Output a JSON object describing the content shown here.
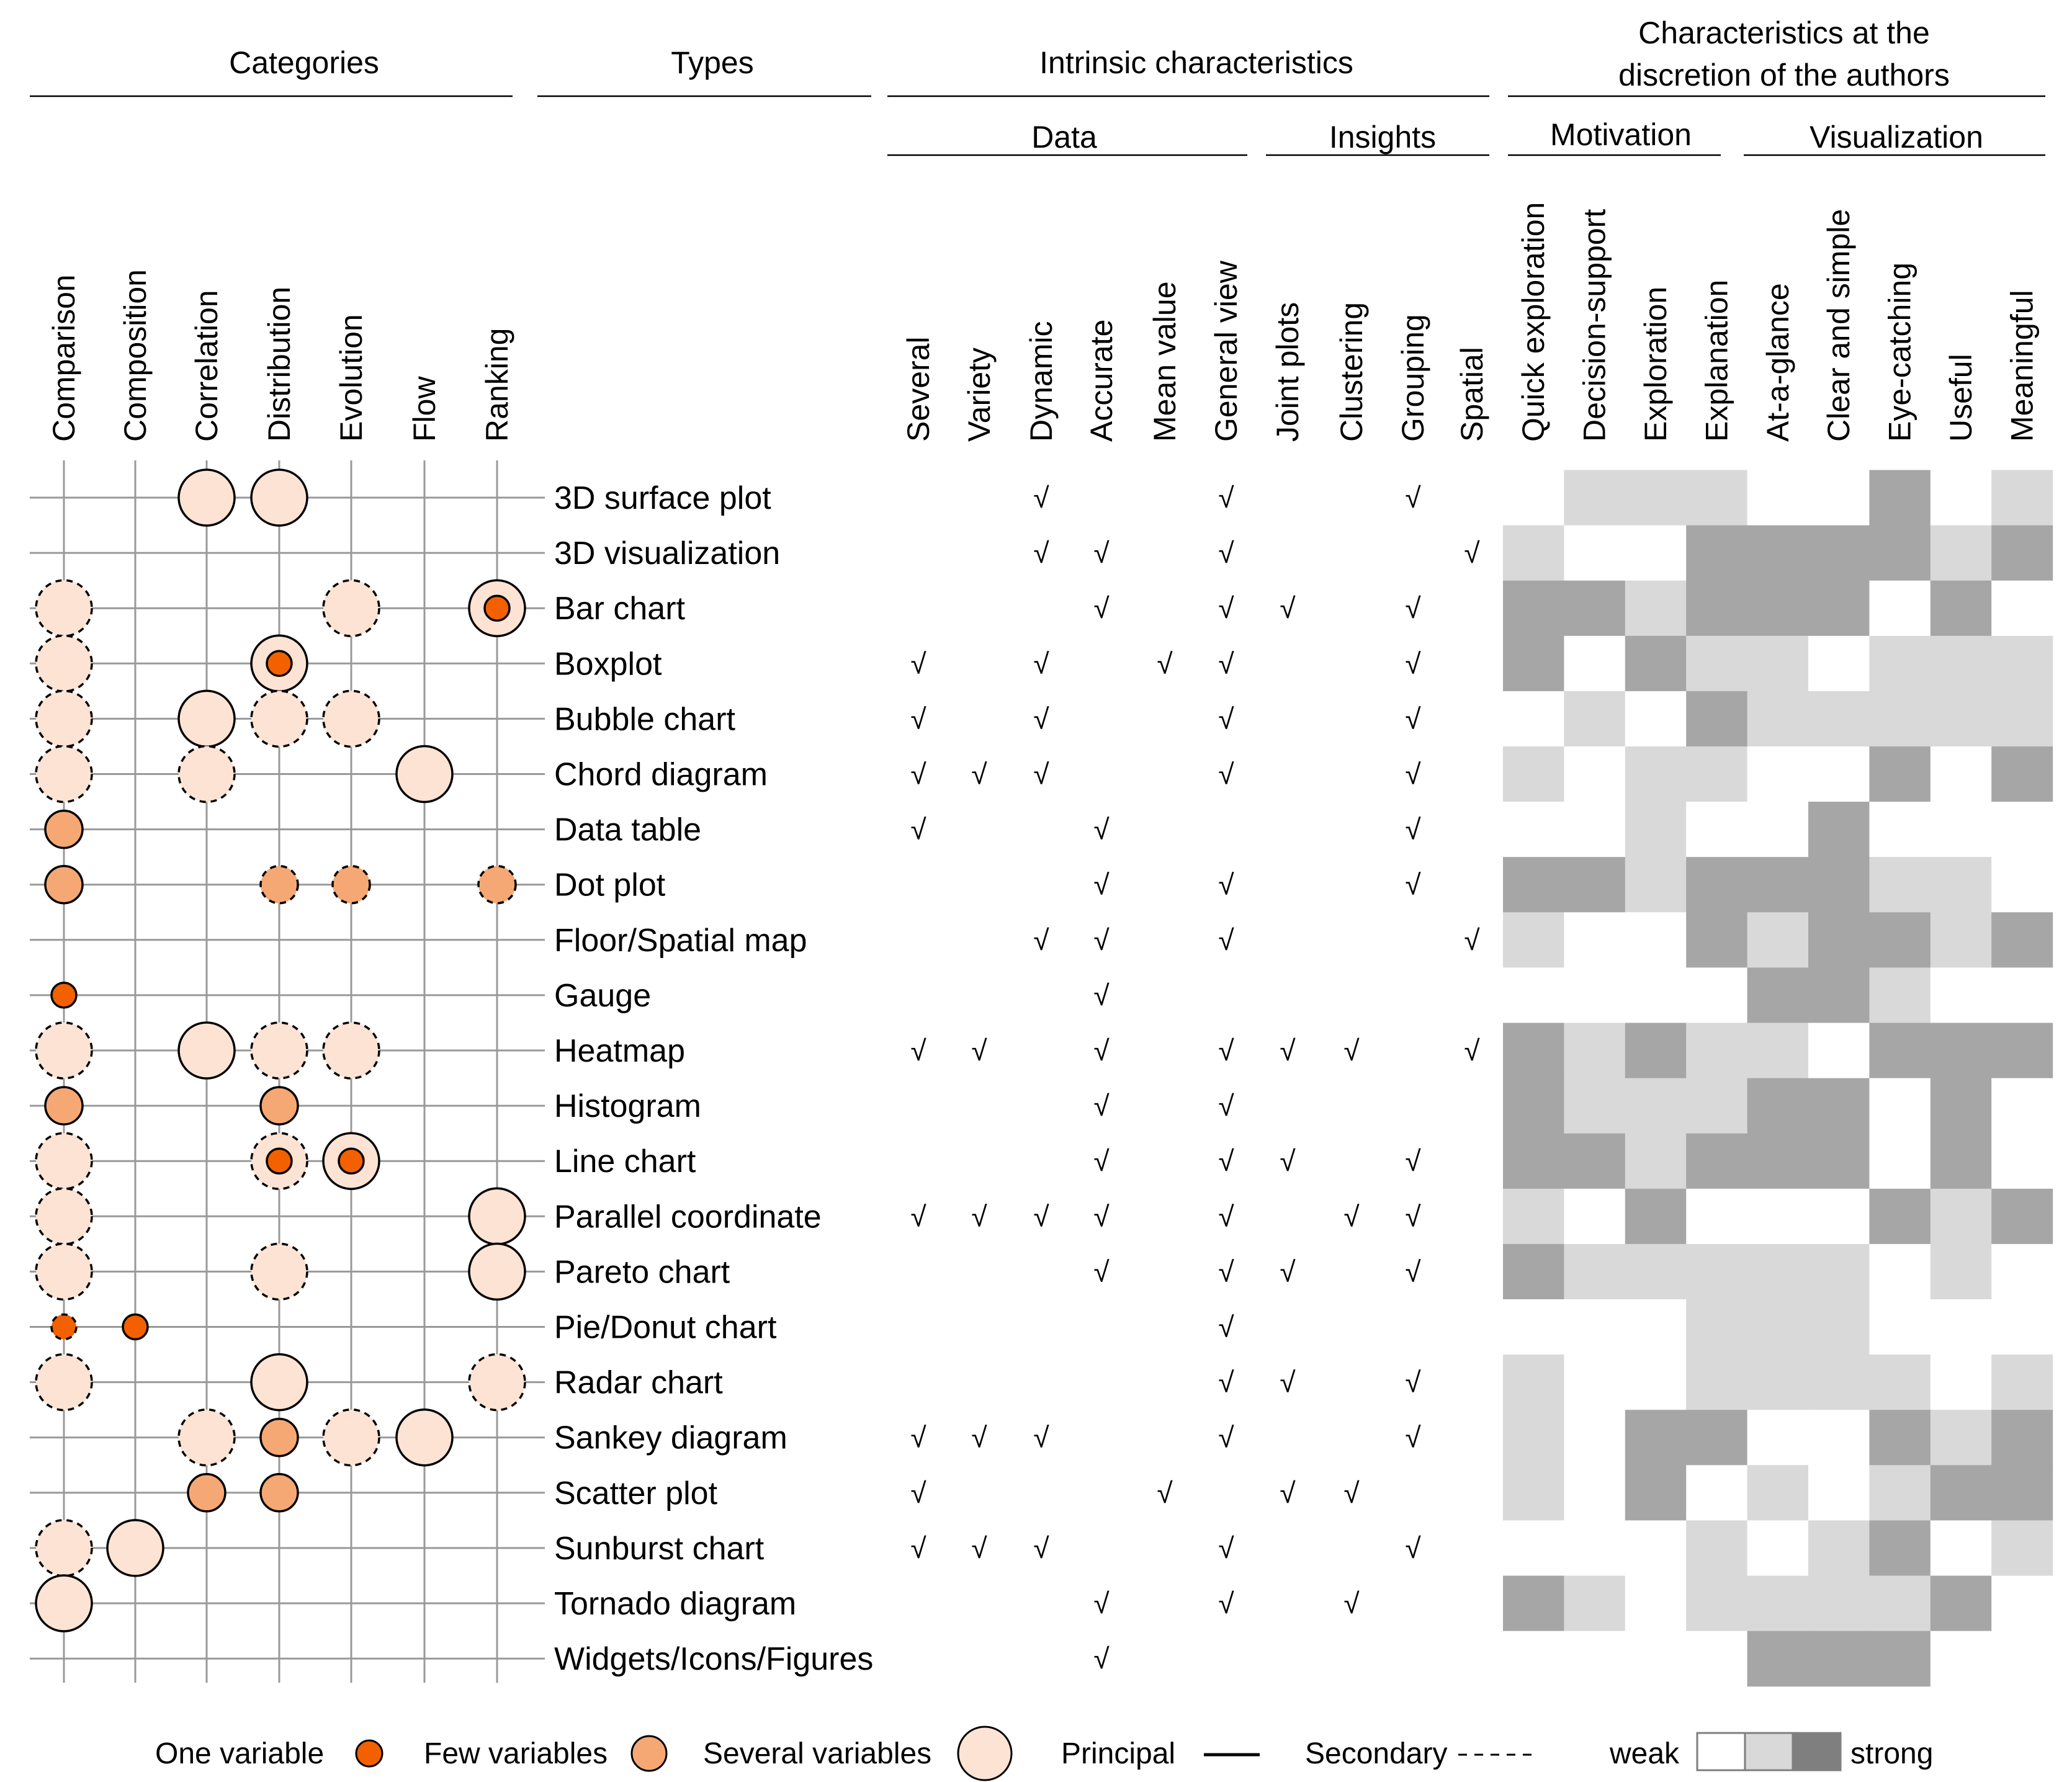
{
  "headers": {
    "categories": "Categories",
    "types": "Types",
    "intrinsic": "Intrinsic characteristics",
    "discretion_line1": "Characteristics at the",
    "discretion_line2": "discretion of the authors",
    "data": "Data",
    "insights": "Insights",
    "motivation": "Motivation",
    "visualization": "Visualization"
  },
  "category_columns": [
    "Comparison",
    "Composition",
    "Correlation",
    "Distribution",
    "Evolution",
    "Flow",
    "Ranking"
  ],
  "intrinsic_columns": [
    "Several",
    "Variety",
    "Dynamic",
    "Accurate",
    "Mean value",
    "General view",
    "Joint plots",
    "Clustering",
    "Grouping",
    "Spatial"
  ],
  "discretion_columns": [
    "Quick exploration",
    "Decision-support",
    "Exploration",
    "Explanation",
    "At-a-glance",
    "Clear and simple",
    "Eye-catching",
    "Useful",
    "Meaningful"
  ],
  "check_symbol": "√",
  "colors": {
    "one": "#f26000",
    "few": "#f5a873",
    "several": "#fde3d4",
    "weak": "#ffffff",
    "medium": "#d9d9d9",
    "strong": "#a6a6a6",
    "grid": "#999999"
  },
  "rows": [
    {
      "type": "3D surface plot",
      "circles": [
        null,
        null,
        "S3",
        "S3",
        null,
        null,
        null
      ],
      "checks": [
        0,
        0,
        1,
        0,
        0,
        1,
        0,
        0,
        1,
        0
      ],
      "strength": [
        0,
        1,
        1,
        1,
        0,
        0,
        2,
        0,
        1
      ]
    },
    {
      "type": "3D visualization",
      "circles": [
        null,
        null,
        null,
        null,
        null,
        null,
        null
      ],
      "checks": [
        0,
        0,
        1,
        1,
        0,
        1,
        0,
        0,
        0,
        1
      ],
      "strength": [
        1,
        0,
        0,
        2,
        2,
        2,
        2,
        1,
        2
      ]
    },
    {
      "type": "Bar chart",
      "circles": [
        "D3",
        null,
        null,
        null,
        "D3",
        null,
        "S3+S1"
      ],
      "checks": [
        0,
        0,
        0,
        1,
        0,
        1,
        1,
        0,
        1,
        0
      ],
      "strength": [
        2,
        2,
        1,
        2,
        2,
        2,
        0,
        2,
        0
      ]
    },
    {
      "type": "Boxplot",
      "circles": [
        "D3",
        null,
        null,
        "S3+S1",
        null,
        null,
        null
      ],
      "checks": [
        1,
        0,
        1,
        0,
        1,
        1,
        0,
        0,
        1,
        0
      ],
      "strength": [
        2,
        0,
        2,
        1,
        1,
        0,
        1,
        1,
        1
      ]
    },
    {
      "type": "Bubble chart",
      "circles": [
        "D3",
        null,
        "S3",
        "D3",
        "D3",
        null,
        null
      ],
      "checks": [
        1,
        0,
        1,
        0,
        0,
        1,
        0,
        0,
        1,
        0
      ],
      "strength": [
        0,
        1,
        0,
        2,
        1,
        1,
        1,
        1,
        1
      ]
    },
    {
      "type": "Chord diagram",
      "circles": [
        "D3",
        null,
        "D3",
        null,
        null,
        "S3",
        null
      ],
      "checks": [
        1,
        1,
        1,
        0,
        0,
        1,
        0,
        0,
        1,
        0
      ],
      "strength": [
        1,
        0,
        1,
        1,
        0,
        0,
        2,
        0,
        2
      ]
    },
    {
      "type": "Data table",
      "circles": [
        "S2",
        null,
        null,
        null,
        null,
        null,
        null
      ],
      "checks": [
        1,
        0,
        0,
        1,
        0,
        0,
        0,
        0,
        1,
        0
      ],
      "strength": [
        0,
        0,
        1,
        0,
        0,
        2,
        0,
        0,
        0
      ]
    },
    {
      "type": "Dot plot",
      "circles": [
        "S2",
        null,
        null,
        "D2",
        "D2",
        null,
        "D2"
      ],
      "checks": [
        0,
        0,
        0,
        1,
        0,
        1,
        0,
        0,
        1,
        0
      ],
      "strength": [
        2,
        2,
        1,
        2,
        2,
        2,
        1,
        1,
        0
      ]
    },
    {
      "type": "Floor/Spatial map",
      "circles": [
        null,
        null,
        null,
        null,
        null,
        null,
        null
      ],
      "checks": [
        0,
        0,
        1,
        1,
        0,
        1,
        0,
        0,
        0,
        1
      ],
      "strength": [
        1,
        0,
        0,
        2,
        1,
        2,
        2,
        1,
        2
      ]
    },
    {
      "type": "Gauge",
      "circles": [
        "S1",
        null,
        null,
        null,
        null,
        null,
        null
      ],
      "checks": [
        0,
        0,
        0,
        1,
        0,
        0,
        0,
        0,
        0,
        0
      ],
      "strength": [
        0,
        0,
        0,
        0,
        2,
        2,
        1,
        0,
        0
      ]
    },
    {
      "type": "Heatmap",
      "circles": [
        "D3",
        null,
        "S3",
        "D3",
        "D3",
        null,
        null
      ],
      "checks": [
        1,
        1,
        0,
        1,
        0,
        1,
        1,
        1,
        0,
        1
      ],
      "strength": [
        2,
        1,
        2,
        1,
        1,
        0,
        2,
        2,
        2
      ]
    },
    {
      "type": "Histogram",
      "circles": [
        "S2",
        null,
        null,
        "S2",
        null,
        null,
        null
      ],
      "checks": [
        0,
        0,
        0,
        1,
        0,
        1,
        0,
        0,
        0,
        0
      ],
      "strength": [
        2,
        1,
        1,
        1,
        2,
        2,
        0,
        2,
        0
      ]
    },
    {
      "type": "Line chart",
      "circles": [
        "D3",
        null,
        null,
        "D3+S1",
        "S3+S1",
        null,
        null
      ],
      "checks": [
        0,
        0,
        0,
        1,
        0,
        1,
        1,
        0,
        1,
        0
      ],
      "strength": [
        2,
        2,
        1,
        2,
        2,
        2,
        0,
        2,
        0
      ]
    },
    {
      "type": "Parallel coordinate",
      "circles": [
        "D3",
        null,
        null,
        null,
        null,
        null,
        "S3"
      ],
      "checks": [
        1,
        1,
        1,
        1,
        0,
        1,
        0,
        1,
        1,
        0
      ],
      "strength": [
        1,
        0,
        2,
        0,
        0,
        0,
        2,
        1,
        2
      ]
    },
    {
      "type": "Pareto chart",
      "circles": [
        "D3",
        null,
        null,
        "D3",
        null,
        null,
        "S3"
      ],
      "checks": [
        0,
        0,
        0,
        1,
        0,
        1,
        1,
        0,
        1,
        0
      ],
      "strength": [
        2,
        1,
        1,
        1,
        1,
        1,
        0,
        1,
        0
      ]
    },
    {
      "type": "Pie/Donut chart",
      "circles": [
        "D1",
        "S1",
        null,
        null,
        null,
        null,
        null
      ],
      "checks": [
        0,
        0,
        0,
        0,
        0,
        1,
        0,
        0,
        0,
        0
      ],
      "strength": [
        0,
        0,
        0,
        1,
        1,
        1,
        0,
        0,
        0
      ]
    },
    {
      "type": "Radar chart",
      "circles": [
        "D3",
        null,
        null,
        "S3",
        null,
        null,
        "D3"
      ],
      "checks": [
        0,
        0,
        0,
        0,
        0,
        1,
        1,
        0,
        1,
        0
      ],
      "strength": [
        1,
        0,
        0,
        1,
        1,
        1,
        1,
        0,
        1
      ]
    },
    {
      "type": "Sankey diagram",
      "circles": [
        null,
        null,
        "D3",
        "S2",
        "D3",
        "S3",
        null
      ],
      "checks": [
        1,
        1,
        1,
        0,
        0,
        1,
        0,
        0,
        1,
        0
      ],
      "strength": [
        1,
        0,
        2,
        2,
        0,
        0,
        2,
        1,
        2
      ]
    },
    {
      "type": "Scatter plot",
      "circles": [
        null,
        null,
        "S2",
        "S2",
        null,
        null,
        null
      ],
      "checks": [
        1,
        0,
        0,
        0,
        1,
        0,
        1,
        1,
        0,
        0
      ],
      "strength": [
        1,
        0,
        2,
        0,
        1,
        0,
        1,
        2,
        2
      ]
    },
    {
      "type": "Sunburst chart",
      "circles": [
        "D3",
        "S3",
        null,
        null,
        null,
        null,
        null
      ],
      "checks": [
        1,
        1,
        1,
        0,
        0,
        1,
        0,
        0,
        1,
        0
      ],
      "strength": [
        0,
        0,
        0,
        1,
        0,
        1,
        2,
        0,
        1
      ]
    },
    {
      "type": "Tornado diagram",
      "circles": [
        "S3",
        null,
        null,
        null,
        null,
        null,
        null
      ],
      "checks": [
        0,
        0,
        0,
        1,
        0,
        1,
        0,
        1,
        0,
        0
      ],
      "strength": [
        2,
        1,
        0,
        1,
        1,
        1,
        1,
        2,
        0
      ]
    },
    {
      "type": "Widgets/Icons/Figures",
      "circles": [
        null,
        null,
        null,
        null,
        null,
        null,
        null
      ],
      "checks": [
        0,
        0,
        0,
        1,
        0,
        0,
        0,
        0,
        0,
        0
      ],
      "strength": [
        0,
        0,
        0,
        0,
        2,
        2,
        2,
        0,
        0
      ]
    }
  ],
  "legend": {
    "one_variable": "One variable",
    "few_variables": "Few variables",
    "several_variables": "Several variables",
    "principal": "Principal",
    "secondary": "Secondary",
    "weak": "weak",
    "strong": "strong"
  }
}
